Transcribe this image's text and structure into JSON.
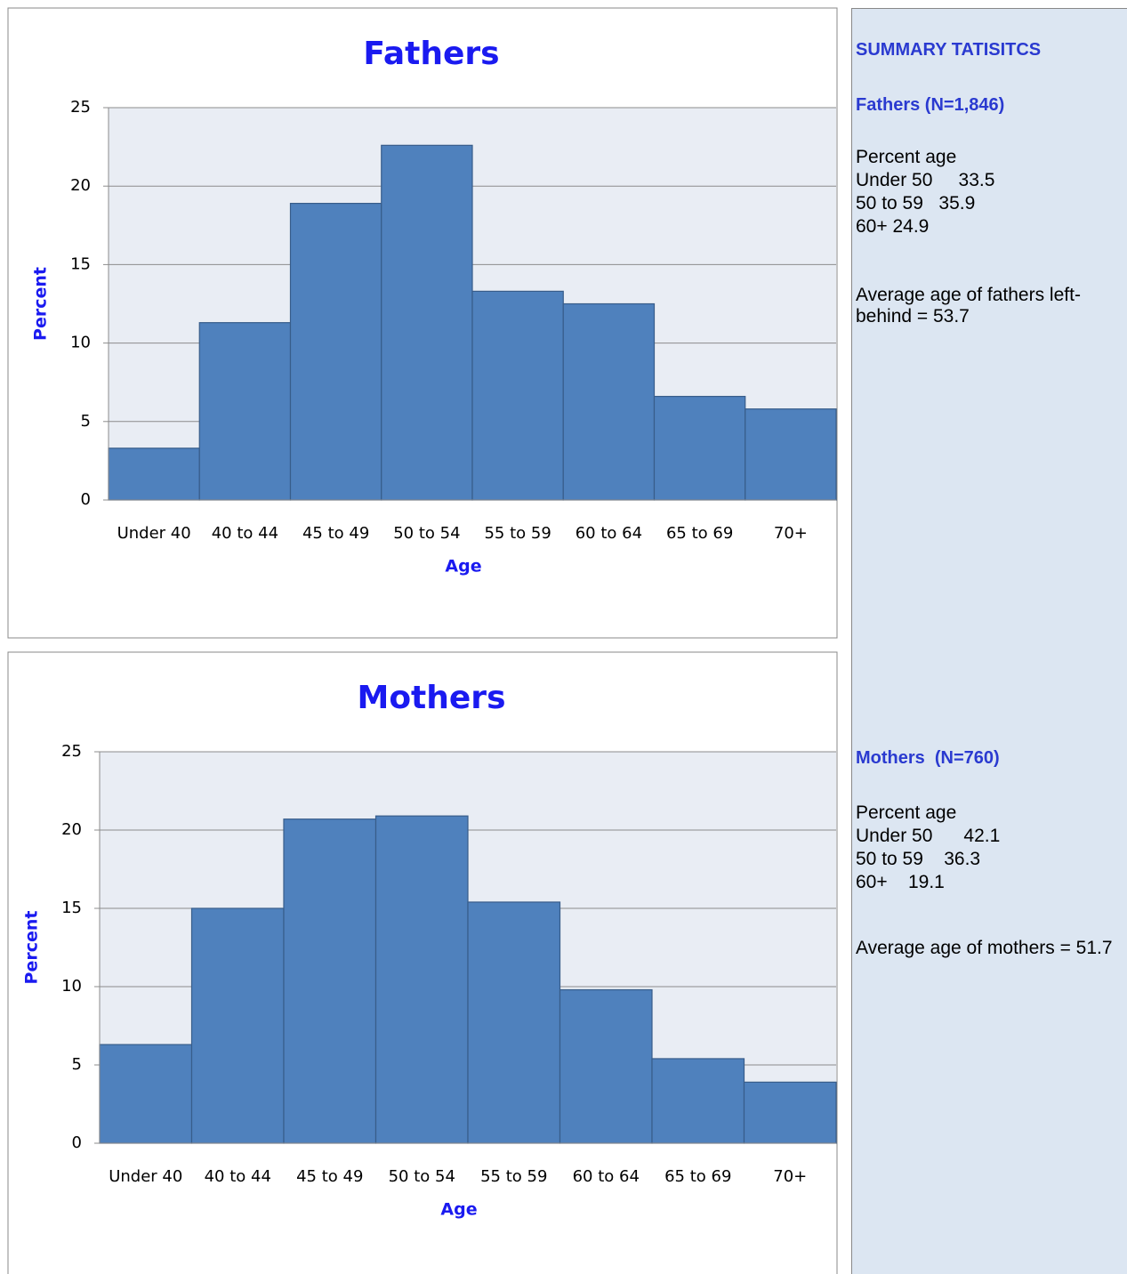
{
  "chart_data": [
    {
      "type": "bar",
      "title": "Fathers",
      "x_label": "Age",
      "y_label": "Percent",
      "categories": [
        "Under 40",
        "40 to 44",
        "45 to 49",
        "50 to 54",
        "55 to 59",
        "60 to 64",
        "65 to 69",
        "70+"
      ],
      "values": [
        3.3,
        11.3,
        18.9,
        22.6,
        13.3,
        12.5,
        6.6,
        5.8
      ],
      "color": "#4f81bd",
      "ylim": [
        0,
        25
      ],
      "yticks": [
        0,
        5,
        10,
        15,
        20,
        25
      ],
      "grid": true
    },
    {
      "type": "bar",
      "title": "Mothers",
      "x_label": "Age",
      "y_label": "Percent",
      "categories": [
        "Under 40",
        "40 to 44",
        "45 to 49",
        "50 to 54",
        "55 to 59",
        "60 to 64",
        "65 to 69",
        "70+"
      ],
      "values": [
        6.3,
        15.0,
        20.7,
        20.9,
        15.4,
        9.8,
        5.4,
        3.9
      ],
      "color": "#4f81bd",
      "ylim": [
        0,
        25
      ],
      "yticks": [
        0,
        5,
        10,
        15,
        20,
        25
      ],
      "grid": true
    }
  ],
  "summary": {
    "title": "SUMMARY TATISITCS",
    "sections": [
      {
        "heading": "Fathers (N=1,846)",
        "lines": [
          "Percent age",
          "Under 50     33.5",
          "50 to 59   35.9",
          "60+ 24.9"
        ],
        "note": "Average age of fathers left-behind = 53.7"
      },
      {
        "heading": "Mothers  (N=760)",
        "lines": [
          "Percent age",
          "Under 50      42.1",
          "50 to 59    36.3",
          "60+    19.1"
        ],
        "note": "Average age of mothers = 51.7"
      }
    ]
  }
}
